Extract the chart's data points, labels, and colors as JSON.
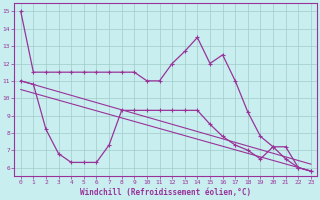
{
  "xlabel": "Windchill (Refroidissement éolien,°C)",
  "background_color": "#c8eef0",
  "grid_color": "#a0ccc8",
  "line_color": "#993399",
  "xlim": [
    -0.5,
    23.5
  ],
  "ylim": [
    5.5,
    15.5
  ],
  "yticks": [
    6,
    7,
    8,
    9,
    10,
    11,
    12,
    13,
    14,
    15
  ],
  "xticks": [
    0,
    1,
    2,
    3,
    4,
    5,
    6,
    7,
    8,
    9,
    10,
    11,
    12,
    13,
    14,
    15,
    16,
    17,
    18,
    19,
    20,
    21,
    22,
    23
  ],
  "line1_x": [
    0,
    1,
    2,
    3,
    4,
    5,
    6,
    7,
    8,
    9,
    10,
    11,
    12,
    13,
    14,
    15,
    16,
    17,
    18,
    19,
    20,
    21,
    22,
    23
  ],
  "line1_y": [
    15.0,
    11.5,
    11.5,
    11.5,
    11.5,
    11.5,
    11.5,
    11.5,
    11.5,
    11.5,
    11.0,
    11.0,
    12.0,
    12.7,
    13.5,
    12.0,
    12.5,
    11.0,
    9.2,
    7.8,
    7.2,
    7.2,
    6.0,
    5.8
  ],
  "line2_x": [
    0,
    1,
    2,
    3,
    4,
    5,
    6,
    7,
    8,
    9,
    10,
    11,
    12,
    13,
    14,
    15,
    16,
    17,
    18,
    19,
    20,
    21,
    22,
    23
  ],
  "line2_y": [
    11.0,
    10.8,
    8.2,
    6.8,
    6.3,
    6.3,
    6.3,
    7.3,
    9.3,
    9.3,
    9.3,
    9.3,
    9.3,
    9.3,
    9.3,
    8.5,
    7.8,
    7.3,
    7.0,
    6.5,
    7.2,
    6.5,
    6.0,
    5.8
  ],
  "trend1_x": [
    0,
    23
  ],
  "trend1_y": [
    11.0,
    6.2
  ],
  "trend2_x": [
    0,
    23
  ],
  "trend2_y": [
    10.5,
    5.8
  ]
}
